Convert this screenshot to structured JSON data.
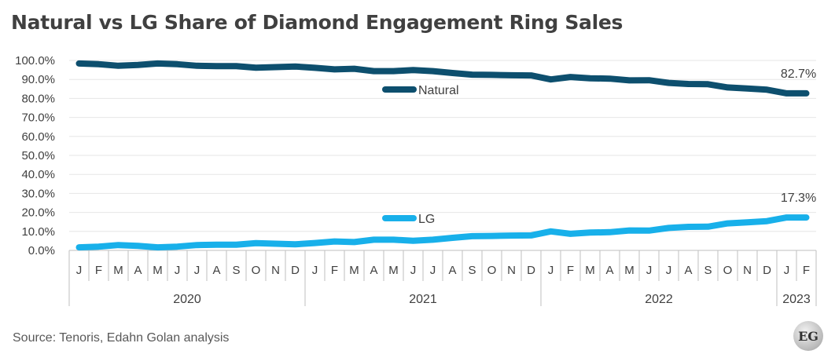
{
  "title": "Natural vs LG Share of Diamond Engagement Ring Sales",
  "source": "Source: Tenoris, Edahn Golan analysis",
  "logo_text": "EG",
  "colors": {
    "natural": "#0d4f6e",
    "lg": "#18b0ea",
    "grid": "#e6e6e6",
    "axis": "#bfbfbf"
  },
  "chart_data": {
    "type": "line",
    "title": "Natural vs LG Share of Diamond Engagement Ring Sales",
    "ylim": [
      0,
      100
    ],
    "yticks": [
      "0.0%",
      "10.0%",
      "20.0%",
      "30.0%",
      "40.0%",
      "50.0%",
      "60.0%",
      "70.0%",
      "80.0%",
      "90.0%",
      "100.0%"
    ],
    "grid": true,
    "legend": "inline",
    "months": [
      "J",
      "F",
      "M",
      "A",
      "M",
      "J",
      "J",
      "A",
      "S",
      "O",
      "N",
      "D",
      "J",
      "F",
      "M",
      "A",
      "M",
      "J",
      "J",
      "A",
      "S",
      "O",
      "N",
      "D",
      "J",
      "F",
      "M",
      "A",
      "M",
      "J",
      "J",
      "A",
      "S",
      "O",
      "N",
      "D",
      "J",
      "F"
    ],
    "years": [
      {
        "label": "2020",
        "count": 12
      },
      {
        "label": "2021",
        "count": 12
      },
      {
        "label": "2022",
        "count": 12
      },
      {
        "label": "2023",
        "count": 2
      }
    ],
    "series": [
      {
        "name": "Natural",
        "key": "natural",
        "values": [
          98.4,
          98.0,
          97.2,
          97.6,
          98.4,
          98.0,
          97.2,
          97.0,
          97.0,
          96.2,
          96.5,
          96.8,
          96.1,
          95.3,
          95.6,
          94.4,
          94.4,
          94.9,
          94.4,
          93.4,
          92.5,
          92.4,
          92.2,
          92.1,
          90.0,
          91.3,
          90.6,
          90.4,
          89.5,
          89.6,
          88.2,
          87.6,
          87.5,
          85.8,
          85.2,
          84.6,
          82.7,
          82.7
        ],
        "end_label": "82.7%"
      },
      {
        "name": "LG",
        "key": "lg",
        "values": [
          1.6,
          2.0,
          2.8,
          2.4,
          1.6,
          2.0,
          2.8,
          3.0,
          3.0,
          3.8,
          3.5,
          3.2,
          3.9,
          4.7,
          4.4,
          5.6,
          5.6,
          5.1,
          5.6,
          6.6,
          7.5,
          7.6,
          7.8,
          7.9,
          10.0,
          8.7,
          9.4,
          9.6,
          10.5,
          10.4,
          11.8,
          12.4,
          12.5,
          14.2,
          14.8,
          15.4,
          17.3,
          17.3
        ],
        "end_label": "17.3%"
      }
    ]
  }
}
